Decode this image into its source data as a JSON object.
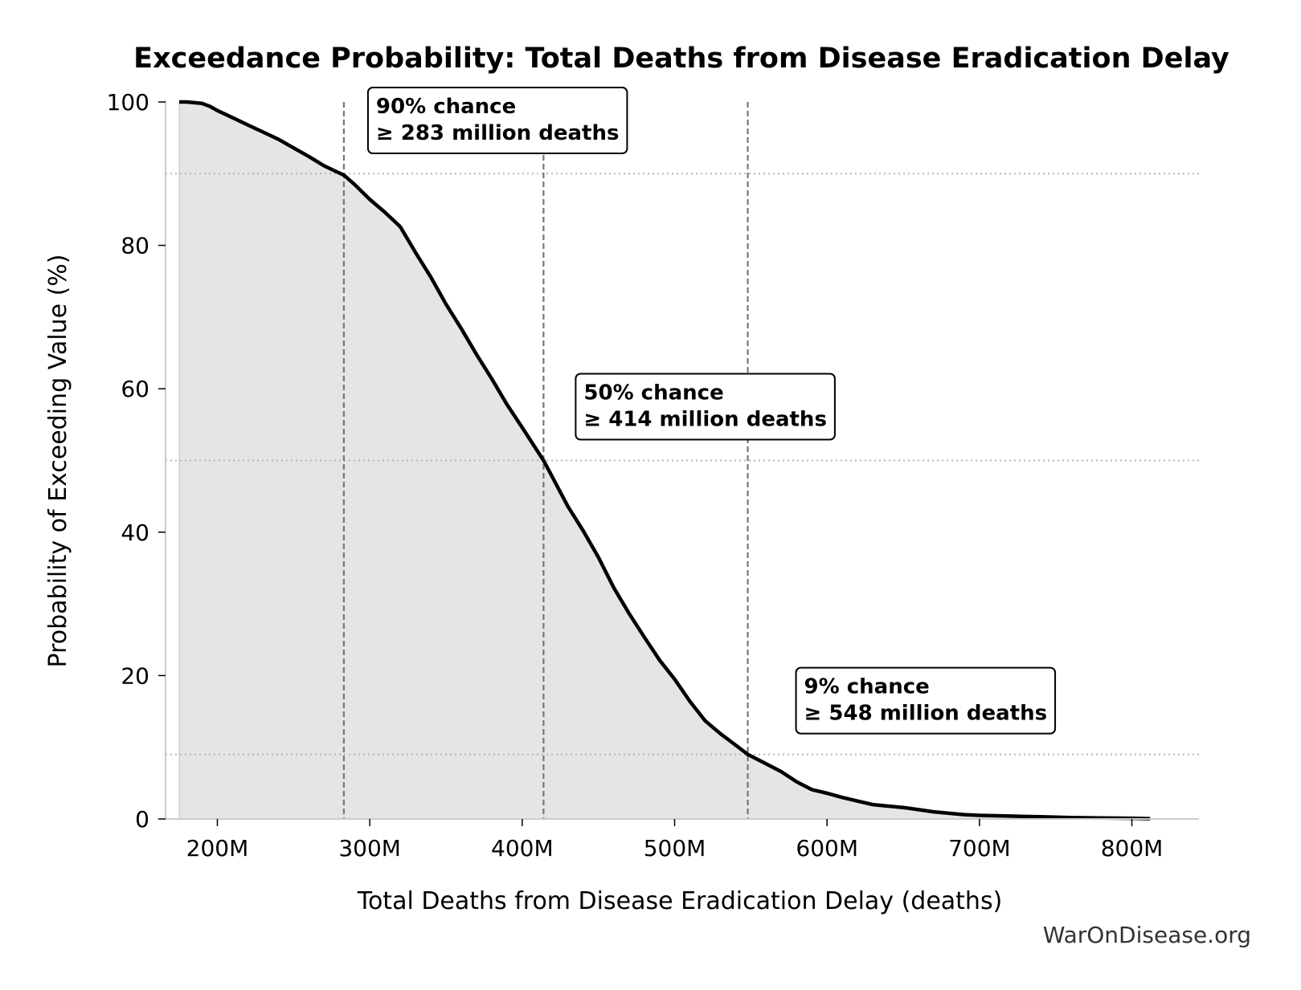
{
  "chart_data": {
    "type": "area",
    "title": "Exceedance Probability: Total Deaths from Disease Eradication Delay",
    "xlabel": "Total Deaths from Disease Eradication Delay (deaths)",
    "ylabel": "Probability of Exceeding Value (%)",
    "xlim": [
      166,
      844
    ],
    "ylim": [
      0,
      100
    ],
    "x_unit": "million deaths",
    "xticks": [
      {
        "value": 200,
        "label": "200M"
      },
      {
        "value": 300,
        "label": "300M"
      },
      {
        "value": 400,
        "label": "400M"
      },
      {
        "value": 500,
        "label": "500M"
      },
      {
        "value": 600,
        "label": "600M"
      },
      {
        "value": 700,
        "label": "700M"
      },
      {
        "value": 800,
        "label": "800M"
      }
    ],
    "yticks": [
      {
        "value": 0,
        "label": "0"
      },
      {
        "value": 20,
        "label": "20"
      },
      {
        "value": 40,
        "label": "40"
      },
      {
        "value": 60,
        "label": "60"
      },
      {
        "value": 80,
        "label": "80"
      },
      {
        "value": 100,
        "label": "100"
      }
    ],
    "series": [
      {
        "x": [
          175,
          180,
          190,
          195,
          200,
          210,
          220,
          230,
          240,
          250,
          260,
          270,
          283,
          290,
          300,
          310,
          320,
          330,
          340,
          350,
          360,
          370,
          380,
          390,
          400,
          414,
          420,
          430,
          440,
          450,
          460,
          470,
          480,
          490,
          500,
          510,
          520,
          530,
          540,
          548,
          560,
          570,
          580,
          590,
          600,
          610,
          620,
          630,
          650,
          660,
          670,
          680,
          690,
          700,
          720,
          740,
          760,
          780,
          800,
          812
        ],
        "y": [
          100,
          100,
          99.8,
          99.4,
          98.8,
          97.8,
          96.8,
          95.8,
          94.8,
          93.6,
          92.4,
          91.1,
          89.8,
          88.5,
          86.4,
          84.6,
          82.6,
          79.0,
          75.6,
          71.8,
          68.4,
          64.8,
          61.4,
          57.8,
          54.6,
          50.0,
          47.6,
          43.6,
          40.2,
          36.5,
          32.3,
          28.7,
          25.4,
          22.2,
          19.5,
          16.4,
          13.7,
          11.9,
          10.3,
          9.0,
          7.7,
          6.6,
          5.2,
          4.1,
          3.6,
          3.0,
          2.5,
          2.0,
          1.6,
          1.3,
          1.0,
          0.8,
          0.6,
          0.5,
          0.4,
          0.3,
          0.2,
          0.15,
          0.1,
          0.05
        ]
      }
    ],
    "markers": [
      {
        "x": 283,
        "y": 90,
        "label_line1": "90% chance",
        "label_line2": "≥ 283 million deaths"
      },
      {
        "x": 414,
        "y": 50,
        "label_line1": "50% chance",
        "label_line2": "≥ 414 million deaths"
      },
      {
        "x": 548,
        "y": 9,
        "label_line1": "9% chance",
        "label_line2": "≥ 548 million deaths"
      }
    ],
    "grid": false,
    "legend": "none"
  },
  "watermark": "WarOnDisease.org",
  "colors": {
    "line": "#000000",
    "fill": "#e5e5e5",
    "marker_line": "#777777",
    "marker_hline": "#b5b5b5",
    "axis": "#cccccc",
    "text": "#000000"
  }
}
